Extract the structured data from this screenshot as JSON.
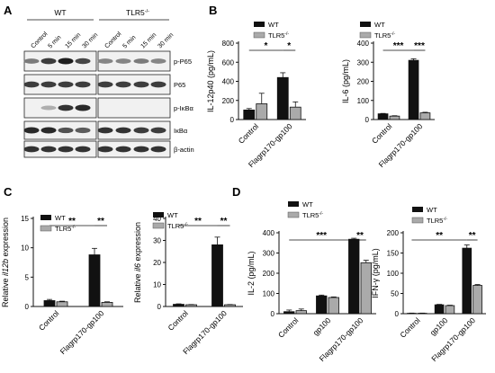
{
  "panels": {
    "A": "A",
    "B": "B",
    "C": "C",
    "D": "D"
  },
  "blot": {
    "groups": [
      "WT",
      "TLR5",
      "-/-"
    ],
    "lanes": [
      "Control",
      "5 min",
      "15 min",
      "30 min",
      "Control",
      "5 min",
      "15 min",
      "30 min"
    ],
    "proteins": [
      "p-P65",
      "P65",
      "p-IκBα",
      "IκBα",
      "β-actin"
    ],
    "band_intensity": [
      [
        0.5,
        0.8,
        0.95,
        0.75,
        0.45,
        0.45,
        0.5,
        0.45
      ],
      [
        0.8,
        0.8,
        0.8,
        0.8,
        0.8,
        0.8,
        0.8,
        0.8
      ],
      [
        0.0,
        0.25,
        0.85,
        0.9,
        0.0,
        0.0,
        0.0,
        0.0
      ],
      [
        0.9,
        0.9,
        0.7,
        0.65,
        0.85,
        0.85,
        0.8,
        0.8
      ],
      [
        0.85,
        0.85,
        0.85,
        0.85,
        0.85,
        0.85,
        0.85,
        0.85
      ]
    ]
  },
  "legend": {
    "wt": "WT",
    "ko": "TLR5",
    "ko_sup": "-/-"
  },
  "colors": {
    "wt": "#111111",
    "ko": "#aaaaaa"
  },
  "chart_data": [
    {
      "type": "bar",
      "panel": "B",
      "ylabel": "IL-12p40 (pg/mL)",
      "ylim": [
        0,
        800
      ],
      "yticks": [
        0,
        200,
        400,
        600,
        800
      ],
      "categories": [
        "Control",
        "Flagrp170-gp100"
      ],
      "series": [
        {
          "name": "WT",
          "values": [
            100,
            440
          ],
          "errors": [
            15,
            50
          ]
        },
        {
          "name": "TLR5-/-",
          "values": [
            165,
            130
          ],
          "errors": [
            110,
            55
          ]
        }
      ],
      "significance": [
        {
          "label": "*",
          "from": 0,
          "to": 2
        },
        {
          "label": "*",
          "from": 2,
          "to": 3
        }
      ]
    },
    {
      "type": "bar",
      "panel": "B",
      "ylabel": "IL-6 (pg/mL)",
      "ylim": [
        0,
        400
      ],
      "yticks": [
        0,
        100,
        200,
        300,
        400
      ],
      "categories": [
        "Control",
        "Flagrp170-gp100"
      ],
      "series": [
        {
          "name": "WT",
          "values": [
            30,
            310
          ],
          "errors": [
            2,
            8
          ]
        },
        {
          "name": "TLR5-/-",
          "values": [
            18,
            35
          ],
          "errors": [
            2,
            3
          ]
        }
      ],
      "significance": [
        {
          "label": "***",
          "from": 0,
          "to": 2
        },
        {
          "label": "***",
          "from": 2,
          "to": 3
        }
      ]
    },
    {
      "type": "bar",
      "panel": "C",
      "ylabel_prefix": "Relative ",
      "ylabel_italic": "il12b",
      "ylabel_suffix": " expression",
      "ylim": [
        0,
        15
      ],
      "yticks": [
        0,
        5,
        10,
        15
      ],
      "categories": [
        "Control",
        "Flagrp170-gp100"
      ],
      "series": [
        {
          "name": "WT",
          "values": [
            1,
            8.8
          ],
          "errors": [
            0.2,
            1.1
          ]
        },
        {
          "name": "TLR5-/-",
          "values": [
            0.8,
            0.7
          ],
          "errors": [
            0.1,
            0.1
          ]
        }
      ],
      "significance": [
        {
          "label": "**",
          "from": 0,
          "to": 2
        },
        {
          "label": "**",
          "from": 2,
          "to": 3
        }
      ]
    },
    {
      "type": "bar",
      "panel": "C",
      "ylabel_prefix": "Relative ",
      "ylabel_italic": "il6",
      "ylabel_suffix": " expression",
      "ylim": [
        0,
        40
      ],
      "yticks": [
        0,
        10,
        20,
        30,
        40
      ],
      "categories": [
        "Control",
        "Flagrp170-gp100"
      ],
      "series": [
        {
          "name": "WT",
          "values": [
            1,
            28
          ],
          "errors": [
            0.2,
            3.5
          ]
        },
        {
          "name": "TLR5-/-",
          "values": [
            0.8,
            0.8
          ],
          "errors": [
            0.1,
            0.1
          ]
        }
      ],
      "significance": [
        {
          "label": "**",
          "from": 0,
          "to": 2
        },
        {
          "label": "**",
          "from": 2,
          "to": 3
        }
      ]
    },
    {
      "type": "bar",
      "panel": "D",
      "ylabel": "IL-2 (pg/mL)",
      "ylim": [
        0,
        400
      ],
      "yticks": [
        0,
        100,
        200,
        300,
        400
      ],
      "categories": [
        "Control",
        "gp100",
        "Flagrp170-gp100"
      ],
      "series": [
        {
          "name": "WT",
          "values": [
            10,
            88,
            368
          ],
          "errors": [
            8,
            4,
            5
          ]
        },
        {
          "name": "TLR5-/-",
          "values": [
            15,
            80,
            252
          ],
          "errors": [
            8,
            3,
            12
          ]
        }
      ],
      "significance": [
        {
          "label": "***",
          "from": 0,
          "to": 4
        },
        {
          "label": "**",
          "from": 4,
          "to": 5
        }
      ]
    },
    {
      "type": "bar",
      "panel": "D",
      "ylabel": "IFN-γ (pg/mL)",
      "ylim": [
        0,
        200
      ],
      "yticks": [
        0,
        50,
        100,
        150,
        200
      ],
      "categories": [
        "Control",
        "gp100",
        "Flagrp170-gp100"
      ],
      "series": [
        {
          "name": "WT",
          "values": [
            1,
            22,
            162
          ],
          "errors": [
            0.5,
            1,
            8
          ]
        },
        {
          "name": "TLR5-/-",
          "values": [
            1,
            20,
            70
          ],
          "errors": [
            0.5,
            1,
            2
          ]
        }
      ],
      "significance": [
        {
          "label": "**",
          "from": 0,
          "to": 4
        },
        {
          "label": "**",
          "from": 4,
          "to": 5
        }
      ]
    }
  ]
}
